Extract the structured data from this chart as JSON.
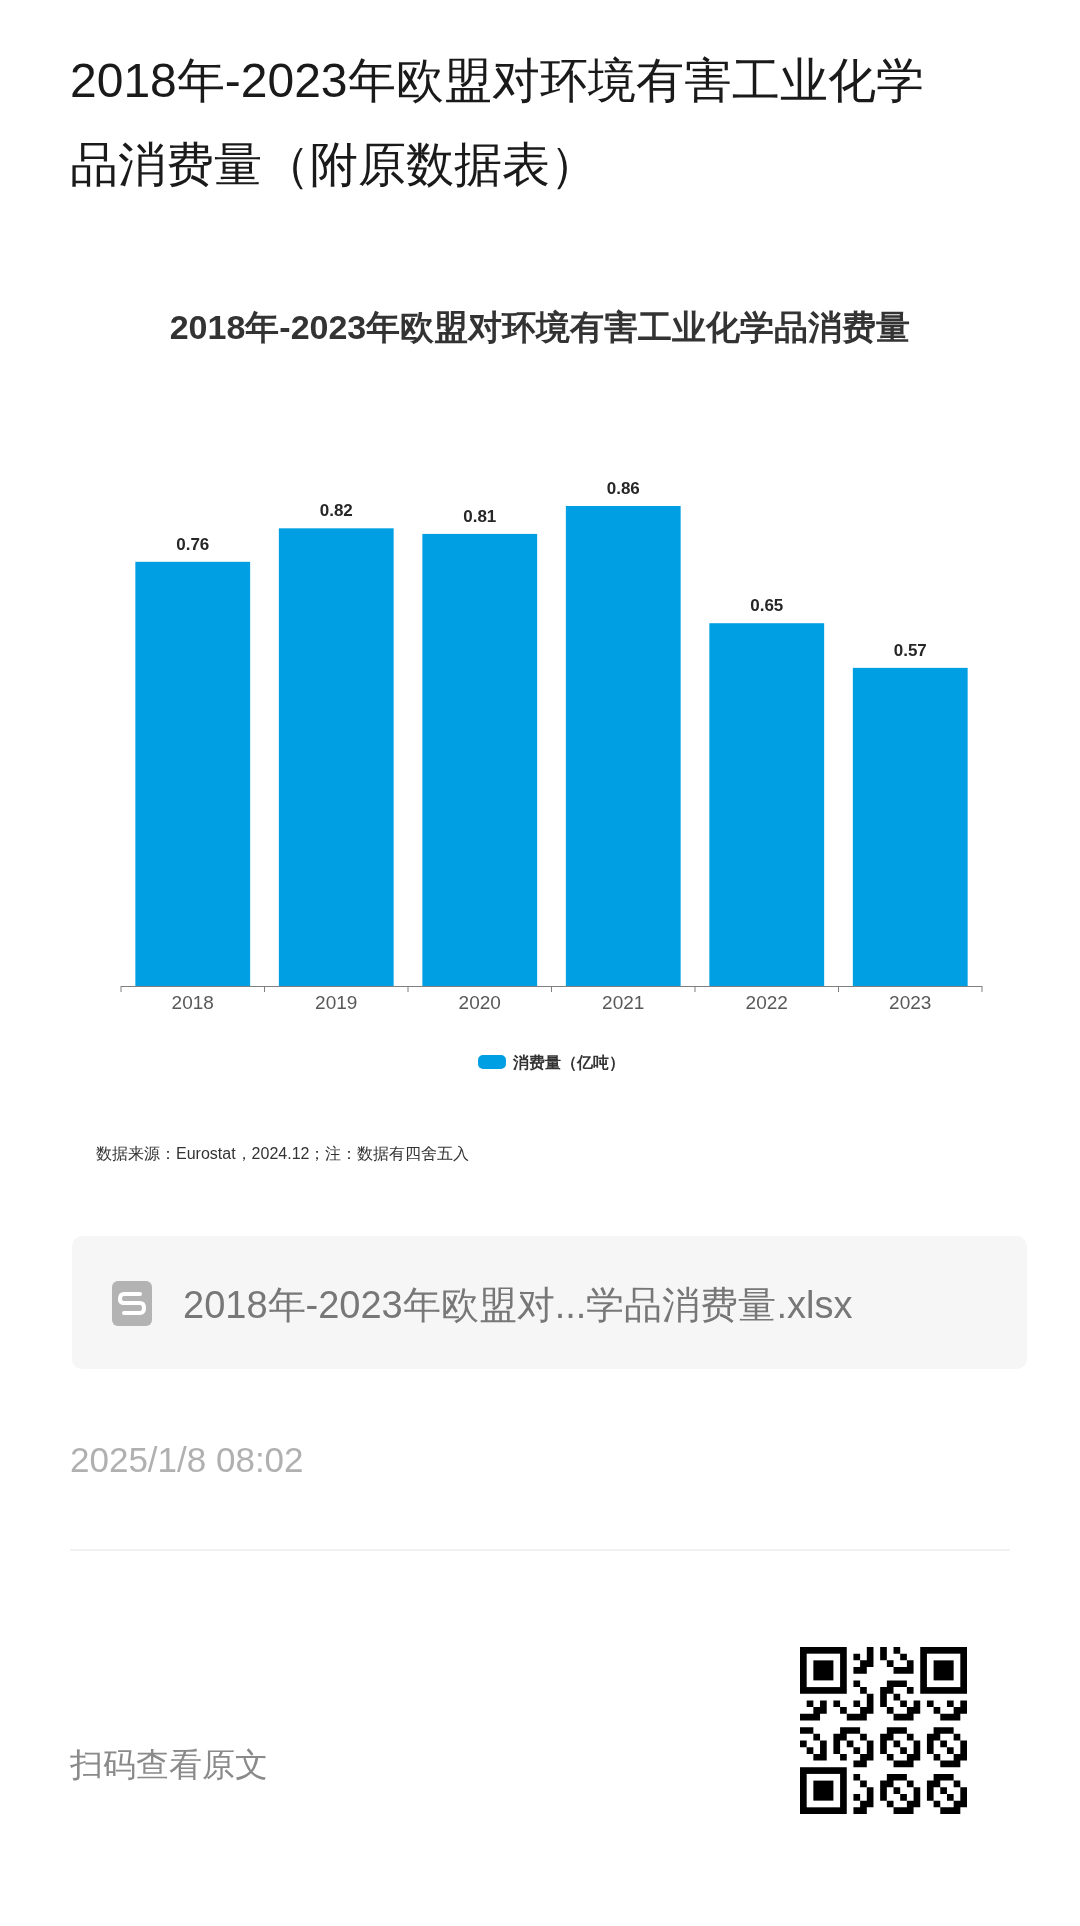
{
  "chart_data": {
    "type": "bar",
    "title": "2018年-2023年欧盟对环境有害工业化学品消费量（附原数据表）",
    "subtitle": "2018年-2023年欧盟对环境有害工业化学品消费量",
    "categories": [
      "2018",
      "2019",
      "2020",
      "2021",
      "2022",
      "2023"
    ],
    "series": [
      {
        "name": "消费量（亿吨）",
        "color": "#009fe3",
        "values": [
          0.76,
          0.82,
          0.81,
          0.86,
          0.65,
          0.57
        ]
      }
    ],
    "data_labels": true,
    "legend": "bottom",
    "grid": false,
    "annotations": [
      "数据来源：Eurostat，2024.12；注：数据有四舍五入",
      "2018年-2023年欧盟对...学品消费量.xlsx",
      "2025/1/8 08:02",
      "扫码查看原文"
    ]
  }
}
